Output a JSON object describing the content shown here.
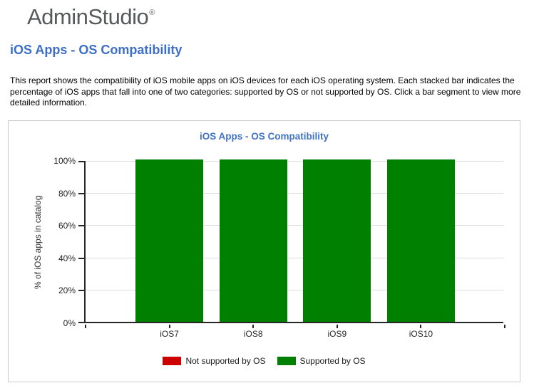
{
  "logo": {
    "text": "AdminStudio",
    "mark": "®"
  },
  "page": {
    "title": "iOS Apps - OS Compatibility",
    "description": "This report shows the compatibility of iOS mobile apps on iOS devices for each iOS operating system. Each stacked bar indicates the percentage of iOS apps that fall into one of two categories: supported by OS or not supported by OS. Click a bar segment to view more detailed information."
  },
  "chart_data": {
    "type": "bar",
    "stacked": true,
    "title": "iOS Apps - OS Compatibility",
    "categories": [
      "iOS7",
      "iOS8",
      "iOS9",
      "iOS10"
    ],
    "series": [
      {
        "name": "Not supported by OS",
        "color": "#cc0000",
        "values": [
          0,
          0,
          0,
          0
        ]
      },
      {
        "name": "Supported by OS",
        "color": "#008000",
        "values": [
          100,
          100,
          100,
          100
        ]
      }
    ],
    "xlabel": "",
    "ylabel": "% of iOS apps in catalog",
    "ylim": [
      0,
      100
    ],
    "yticks": [
      "0%",
      "20%",
      "40%",
      "60%",
      "80%",
      "100%"
    ],
    "grid": true,
    "legend_position": "bottom"
  },
  "colors": {
    "heading_blue": "#3e6fc7",
    "chart_title_blue": "#4173c6",
    "logo_gray": "#58595b",
    "panel_border": "#c9c9c9",
    "axis": "#262626",
    "gridline": "#dcdcdc",
    "bar_green": "#008000",
    "bar_red": "#cc0000"
  }
}
